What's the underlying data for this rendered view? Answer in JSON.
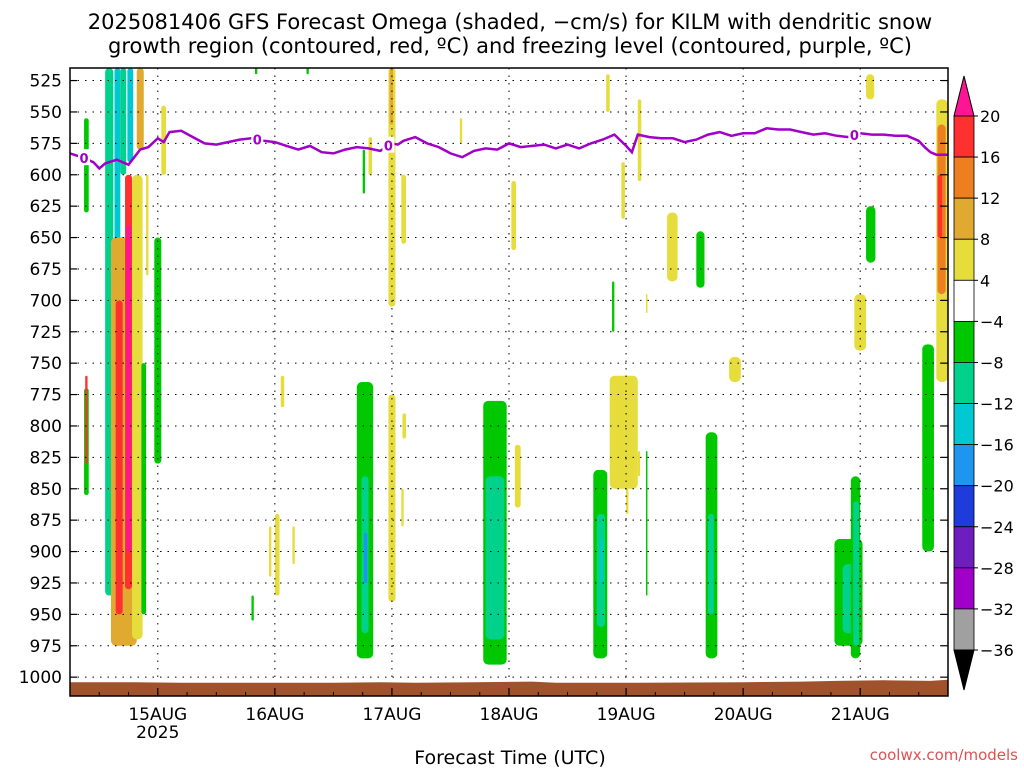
{
  "chart_data": {
    "type": "heatmap",
    "title": "2025081406 GFS Forecast Omega (shaded, −cm/s) for KILM with dendritic snow",
    "subtitle": "growth region (contoured, red, ºC) and freezing level (contoured, purple, ºC)",
    "xlabel": "Forecast Time (UTC)",
    "credit": "coolwx.com/models",
    "x_axis": {
      "min": 14.25,
      "max": 21.75,
      "ticks": [
        {
          "value": 15,
          "label": "15AUG",
          "sublabel": "2025"
        },
        {
          "value": 16,
          "label": "16AUG",
          "sublabel": ""
        },
        {
          "value": 17,
          "label": "17AUG",
          "sublabel": ""
        },
        {
          "value": 18,
          "label": "18AUG",
          "sublabel": ""
        },
        {
          "value": 19,
          "label": "19AUG",
          "sublabel": ""
        },
        {
          "value": 20,
          "label": "20AUG",
          "sublabel": ""
        },
        {
          "value": 21,
          "label": "21AUG",
          "sublabel": ""
        }
      ]
    },
    "y_axis": {
      "min": 515,
      "max": 1015,
      "ticks": [
        525,
        550,
        575,
        600,
        625,
        650,
        675,
        700,
        725,
        750,
        775,
        800,
        825,
        850,
        875,
        900,
        925,
        950,
        975,
        1000
      ]
    },
    "colorbar": {
      "colors": [
        "#ff1493",
        "#ff3030",
        "#ee7f20",
        "#e0aa30",
        "#e6dc3c",
        "#ffffff",
        "#00c800",
        "#00d28c",
        "#00c8d2",
        "#1e96f0",
        "#1e3cdc",
        "#6e1ebe",
        "#a000c8",
        "#a0a0a0",
        "#000000"
      ],
      "labels": [
        "20",
        "16",
        "12",
        "8",
        "4",
        "−4",
        "−8",
        "−12",
        "−16",
        "−20",
        "−24",
        "−28",
        "−32",
        "−36"
      ]
    },
    "freezing_level": {
      "color": "#a000c8",
      "contour_label": "0",
      "label_x": [
        14.37,
        15.85,
        16.97,
        20.95
      ],
      "x": [
        14.25,
        14.35,
        14.45,
        14.5,
        14.55,
        14.65,
        14.75,
        14.85,
        14.92,
        15.0,
        15.05,
        15.1,
        15.2,
        15.3,
        15.4,
        15.5,
        15.6,
        15.7,
        15.8,
        15.9,
        16.0,
        16.1,
        16.2,
        16.3,
        16.4,
        16.5,
        16.6,
        16.7,
        16.8,
        16.9,
        17.0,
        17.05,
        17.1,
        17.2,
        17.3,
        17.4,
        17.5,
        17.6,
        17.7,
        17.8,
        17.9,
        18.0,
        18.1,
        18.2,
        18.3,
        18.4,
        18.5,
        18.6,
        18.7,
        18.8,
        18.9,
        19.0,
        19.05,
        19.1,
        19.2,
        19.3,
        19.4,
        19.5,
        19.6,
        19.7,
        19.8,
        19.9,
        20.0,
        20.1,
        20.2,
        20.3,
        20.4,
        20.5,
        20.6,
        20.7,
        20.8,
        20.9,
        21.0,
        21.1,
        21.2,
        21.3,
        21.4,
        21.5,
        21.55,
        21.6,
        21.65,
        21.75
      ],
      "y": [
        583,
        586,
        590,
        595,
        591,
        588,
        592,
        580,
        578,
        571,
        574,
        566,
        565,
        570,
        575,
        576,
        574,
        572,
        571,
        573,
        574,
        577,
        580,
        577,
        582,
        583,
        580,
        578,
        579,
        581,
        575,
        576,
        573,
        570,
        575,
        578,
        583,
        586,
        581,
        579,
        580,
        575,
        578,
        577,
        576,
        579,
        576,
        579,
        575,
        572,
        568,
        577,
        582,
        568,
        570,
        571,
        571,
        574,
        572,
        568,
        566,
        569,
        567,
        567,
        563,
        564,
        564,
        566,
        568,
        567,
        569,
        570,
        567,
        568,
        568,
        569,
        569,
        573,
        578,
        582,
        584,
        584
      ]
    },
    "omega_regions": [
      {
        "x0": 14.37,
        "x1": 14.41,
        "p0": 555,
        "p1": 630,
        "color": "#00c800"
      },
      {
        "x0": 14.37,
        "x1": 14.41,
        "p0": 770,
        "p1": 855,
        "color": "#00c800"
      },
      {
        "x0": 14.38,
        "x1": 14.4,
        "p0": 760,
        "p1": 830,
        "color": "#ff3030"
      },
      {
        "x0": 14.55,
        "x1": 14.62,
        "p0": 515,
        "p1": 935,
        "color": "#00d28c"
      },
      {
        "x0": 14.63,
        "x1": 14.68,
        "p0": 515,
        "p1": 895,
        "color": "#00c8d2"
      },
      {
        "x0": 14.68,
        "x1": 14.73,
        "p0": 515,
        "p1": 600,
        "color": "#00d28c"
      },
      {
        "x0": 14.74,
        "x1": 14.79,
        "p0": 515,
        "p1": 590,
        "color": "#00c8d2"
      },
      {
        "x0": 14.6,
        "x1": 14.82,
        "p0": 650,
        "p1": 975,
        "color": "#e0aa30"
      },
      {
        "x0": 14.64,
        "x1": 14.7,
        "p0": 700,
        "p1": 950,
        "color": "#ff3030"
      },
      {
        "x0": 14.72,
        "x1": 14.78,
        "p0": 600,
        "p1": 930,
        "color": "#ff3030"
      },
      {
        "x0": 14.73,
        "x1": 14.77,
        "p0": 640,
        "p1": 900,
        "color": "#ff1493"
      },
      {
        "x0": 14.78,
        "x1": 14.87,
        "p0": 600,
        "p1": 970,
        "color": "#e6dc3c"
      },
      {
        "x0": 14.82,
        "x1": 14.88,
        "p0": 515,
        "p1": 580,
        "color": "#e0aa30"
      },
      {
        "x0": 14.86,
        "x1": 14.9,
        "p0": 750,
        "p1": 950,
        "color": "#00c800"
      },
      {
        "x0": 14.9,
        "x1": 14.92,
        "p0": 600,
        "p1": 680,
        "color": "#e6dc3c"
      },
      {
        "x0": 14.97,
        "x1": 15.03,
        "p0": 650,
        "p1": 830,
        "color": "#00c800"
      },
      {
        "x0": 15.03,
        "x1": 15.07,
        "p0": 545,
        "p1": 600,
        "color": "#e6dc3c"
      },
      {
        "x0": 15.83,
        "x1": 15.85,
        "p0": 515,
        "p1": 520,
        "color": "#00c800"
      },
      {
        "x0": 16.27,
        "x1": 16.29,
        "p0": 515,
        "p1": 520,
        "color": "#00c800"
      },
      {
        "x0": 16.05,
        "x1": 16.08,
        "p0": 760,
        "p1": 785,
        "color": "#e6dc3c"
      },
      {
        "x0": 15.8,
        "x1": 15.82,
        "p0": 935,
        "p1": 955,
        "color": "#00c800"
      },
      {
        "x0": 15.95,
        "x1": 15.97,
        "p0": 880,
        "p1": 920,
        "color": "#e6dc3c"
      },
      {
        "x0": 16.0,
        "x1": 16.04,
        "p0": 870,
        "p1": 935,
        "color": "#e6dc3c"
      },
      {
        "x0": 16.15,
        "x1": 16.17,
        "p0": 880,
        "p1": 910,
        "color": "#e6dc3c"
      },
      {
        "x0": 16.75,
        "x1": 16.77,
        "p0": 580,
        "p1": 615,
        "color": "#00c800"
      },
      {
        "x0": 16.7,
        "x1": 16.84,
        "p0": 765,
        "p1": 985,
        "color": "#00c800"
      },
      {
        "x0": 16.74,
        "x1": 16.8,
        "p0": 840,
        "p1": 965,
        "color": "#00d28c"
      },
      {
        "x0": 16.76,
        "x1": 16.79,
        "p0": 885,
        "p1": 925,
        "color": "#1e96f0"
      },
      {
        "x0": 16.97,
        "x1": 17.03,
        "p0": 515,
        "p1": 705,
        "color": "#e6dc3c"
      },
      {
        "x0": 16.98,
        "x1": 17.01,
        "p0": 515,
        "p1": 560,
        "color": "#e0aa30"
      },
      {
        "x0": 16.97,
        "x1": 17.03,
        "p0": 775,
        "p1": 940,
        "color": "#e6dc3c"
      },
      {
        "x0": 17.08,
        "x1": 17.12,
        "p0": 600,
        "p1": 655,
        "color": "#e6dc3c"
      },
      {
        "x0": 17.09,
        "x1": 17.12,
        "p0": 790,
        "p1": 810,
        "color": "#e6dc3c"
      },
      {
        "x0": 17.08,
        "x1": 17.1,
        "p0": 850,
        "p1": 880,
        "color": "#e6dc3c"
      },
      {
        "x0": 16.8,
        "x1": 16.83,
        "p0": 570,
        "p1": 600,
        "color": "#e6dc3c"
      },
      {
        "x0": 17.58,
        "x1": 17.6,
        "p0": 555,
        "p1": 575,
        "color": "#e6dc3c"
      },
      {
        "x0": 18.02,
        "x1": 18.06,
        "p0": 605,
        "p1": 660,
        "color": "#e6dc3c"
      },
      {
        "x0": 17.78,
        "x1": 17.98,
        "p0": 780,
        "p1": 990,
        "color": "#00c800"
      },
      {
        "x0": 17.8,
        "x1": 17.96,
        "p0": 840,
        "p1": 970,
        "color": "#00d28c"
      },
      {
        "x0": 18.05,
        "x1": 18.1,
        "p0": 815,
        "p1": 865,
        "color": "#e6dc3c"
      },
      {
        "x0": 18.72,
        "x1": 18.84,
        "p0": 835,
        "p1": 985,
        "color": "#00c800"
      },
      {
        "x0": 18.75,
        "x1": 18.82,
        "p0": 870,
        "p1": 960,
        "color": "#00d28c"
      },
      {
        "x0": 18.78,
        "x1": 18.8,
        "p0": 890,
        "p1": 925,
        "color": "#00c8d2"
      },
      {
        "x0": 18.83,
        "x1": 18.86,
        "p0": 520,
        "p1": 550,
        "color": "#e6dc3c"
      },
      {
        "x0": 18.96,
        "x1": 18.99,
        "p0": 590,
        "p1": 635,
        "color": "#e6dc3c"
      },
      {
        "x0": 18.88,
        "x1": 18.9,
        "p0": 685,
        "p1": 725,
        "color": "#00c800"
      },
      {
        "x0": 18.86,
        "x1": 19.1,
        "p0": 760,
        "p1": 850,
        "color": "#e6dc3c"
      },
      {
        "x0": 19.1,
        "x1": 19.13,
        "p0": 540,
        "p1": 605,
        "color": "#e6dc3c"
      },
      {
        "x0": 19.0,
        "x1": 19.02,
        "p0": 850,
        "p1": 870,
        "color": "#e6dc3c"
      },
      {
        "x0": 19.1,
        "x1": 19.12,
        "p0": 820,
        "p1": 840,
        "color": "#e6dc3c"
      },
      {
        "x0": 19.17,
        "x1": 19.18,
        "p0": 820,
        "p1": 935,
        "color": "#00c800"
      },
      {
        "x0": 19.17,
        "x1": 19.18,
        "p0": 695,
        "p1": 710,
        "color": "#e6dc3c"
      },
      {
        "x0": 19.35,
        "x1": 19.44,
        "p0": 630,
        "p1": 685,
        "color": "#e6dc3c"
      },
      {
        "x0": 19.6,
        "x1": 19.67,
        "p0": 645,
        "p1": 690,
        "color": "#00c800"
      },
      {
        "x0": 19.68,
        "x1": 19.78,
        "p0": 805,
        "p1": 985,
        "color": "#00c800"
      },
      {
        "x0": 19.7,
        "x1": 19.75,
        "p0": 870,
        "p1": 950,
        "color": "#00d28c"
      },
      {
        "x0": 19.88,
        "x1": 19.98,
        "p0": 745,
        "p1": 765,
        "color": "#e6dc3c"
      },
      {
        "x0": 20.95,
        "x1": 21.05,
        "p0": 695,
        "p1": 740,
        "color": "#e6dc3c"
      },
      {
        "x0": 21.05,
        "x1": 21.12,
        "p0": 520,
        "p1": 540,
        "color": "#e6dc3c"
      },
      {
        "x0": 21.05,
        "x1": 21.13,
        "p0": 625,
        "p1": 670,
        "color": "#00c800"
      },
      {
        "x0": 20.78,
        "x1": 21.02,
        "p0": 890,
        "p1": 975,
        "color": "#00c800"
      },
      {
        "x0": 20.85,
        "x1": 21.0,
        "p0": 910,
        "p1": 965,
        "color": "#00d28c"
      },
      {
        "x0": 20.94,
        "x1": 21.0,
        "p0": 920,
        "p1": 960,
        "color": "#1e96f0"
      },
      {
        "x0": 20.92,
        "x1": 21.0,
        "p0": 840,
        "p1": 985,
        "color": "#00c800"
      },
      {
        "x0": 20.94,
        "x1": 20.99,
        "p0": 860,
        "p1": 975,
        "color": "#00d28c"
      },
      {
        "x0": 21.53,
        "x1": 21.63,
        "p0": 735,
        "p1": 900,
        "color": "#00c800"
      },
      {
        "x0": 21.65,
        "x1": 21.75,
        "p0": 540,
        "p1": 765,
        "color": "#e6dc3c"
      },
      {
        "x0": 21.66,
        "x1": 21.73,
        "p0": 560,
        "p1": 695,
        "color": "#ee7f20"
      },
      {
        "x0": 21.66,
        "x1": 21.7,
        "p0": 600,
        "p1": 650,
        "color": "#ff3030"
      }
    ],
    "grid": "dotted",
    "terrain_color": "#a0522d"
  }
}
